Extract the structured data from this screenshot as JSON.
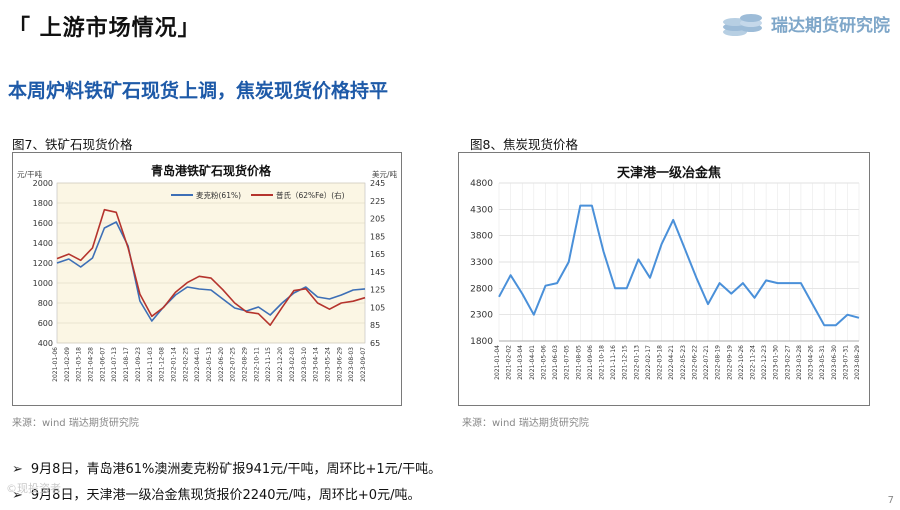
{
  "header": {
    "title": "「 上游市场情况」",
    "brand": "瑞达期货研究院"
  },
  "subtitle": "本周炉料铁矿石现货上调，焦炭现货价格持平",
  "figures": [
    {
      "caption": "图7、铁矿石现货价格",
      "source": "来源：wind   瑞达期货研究院"
    },
    {
      "caption": "图8、焦炭现货价格",
      "source": "来源：wind   瑞达期货研究院"
    }
  ],
  "bullets": [
    "9月8日，青岛港61%澳洲麦克粉矿报941元/干吨，周环比+1元/干吨。",
    "9月8日，天津港一级冶金焦现货报价2240元/吨，周环比+0元/吨。"
  ],
  "page_number": "7",
  "watermark": "©现投资者",
  "colors": {
    "accent": "#1e5aa8",
    "series_blue": "#3d6fb6",
    "series_red": "#b5342d",
    "plot_bg": "#fbf6e4"
  },
  "chart_data": [
    {
      "type": "line",
      "title": "青岛港铁矿石现货价格",
      "ylabel": "元/干吨",
      "y2label": "美元/吨",
      "ylim": [
        400,
        2000
      ],
      "yticks": [
        "2000",
        "1800",
        "1600",
        "1400",
        "1200",
        "1000",
        "800",
        "600",
        "400"
      ],
      "y2lim": [
        65,
        245
      ],
      "y2ticks": [
        "245",
        "225",
        "205",
        "185",
        "165",
        "145",
        "125",
        "105",
        "85",
        "65"
      ],
      "x": [
        "2021-01-06",
        "2021-02-09",
        "2021-03-18",
        "2021-04-28",
        "2021-06-07",
        "2021-07-13",
        "2021-08-17",
        "2021-09-23",
        "2021-11-03",
        "2021-12-08",
        "2022-01-14",
        "2022-02-25",
        "2022-04-01",
        "2022-05-13",
        "2022-06-20",
        "2022-07-25",
        "2022-08-29",
        "2022-10-11",
        "2022-11-15",
        "2022-12-20",
        "2023-02-03",
        "2023-03-10",
        "2023-04-14",
        "2023-05-24",
        "2023-06-29",
        "2023-08-03",
        "2023-09-07"
      ],
      "grid": true,
      "legend": "top-right",
      "series": [
        {
          "name": "麦克粉(61%)",
          "axis": "left",
          "values": [
            1200,
            1240,
            1160,
            1250,
            1550,
            1610,
            1370,
            820,
            620,
            760,
            880,
            960,
            940,
            930,
            840,
            750,
            720,
            760,
            680,
            800,
            900,
            960,
            860,
            840,
            880,
            930,
            941
          ]
        },
        {
          "name": "普氏（62%Fe）(右)",
          "axis": "right",
          "values": [
            160,
            165,
            158,
            172,
            215,
            212,
            172,
            120,
            95,
            105,
            122,
            133,
            140,
            138,
            125,
            110,
            100,
            98,
            85,
            105,
            124,
            126,
            110,
            103,
            110,
            112,
            116
          ]
        }
      ]
    },
    {
      "type": "line",
      "title": "天津港一级冶金焦",
      "ylim": [
        1800,
        4800
      ],
      "yticks": [
        "4800",
        "4300",
        "3800",
        "3300",
        "2800",
        "2300",
        "1800"
      ],
      "x": [
        "2021-01-04",
        "2021-02-02",
        "2021-03-04",
        "2021-04-01",
        "2021-05-06",
        "2021-06-03",
        "2021-07-05",
        "2021-08-05",
        "2021-09-06",
        "2021-10-18",
        "2021-11-16",
        "2021-12-15",
        "2022-01-13",
        "2022-02-17",
        "2022-03-18",
        "2022-04-21",
        "2022-05-23",
        "2022-06-22",
        "2022-07-21",
        "2022-08-19",
        "2022-09-19",
        "2022-10-26",
        "2022-11-24",
        "2022-12-23",
        "2023-01-30",
        "2023-02-27",
        "2023-03-28",
        "2023-04-26",
        "2023-05-31",
        "2023-06-30",
        "2023-07-31",
        "2023-08-29"
      ],
      "grid": true,
      "series": [
        {
          "name": "天津港一级冶金焦",
          "values": [
            2640,
            3050,
            2700,
            2300,
            2850,
            2900,
            3300,
            4370,
            4370,
            3500,
            2800,
            2800,
            3350,
            3000,
            3640,
            4100,
            3550,
            3000,
            2500,
            2900,
            2700,
            2900,
            2620,
            2950,
            2900,
            2900,
            2900,
            2500,
            2100,
            2100,
            2300,
            2240
          ]
        }
      ]
    }
  ]
}
